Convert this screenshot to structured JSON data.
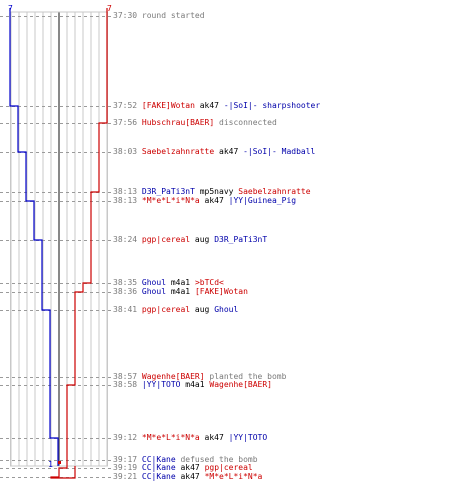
{
  "score": {
    "left_start": "7",
    "right_start": "7",
    "left_end": "1",
    "right_end": "0"
  },
  "colors": {
    "team_a": "#0000cc",
    "team_b": "#cc0000",
    "grid": "#c8c8c8",
    "text_gray": "#7a7a7a"
  },
  "events": [
    {
      "time": "37:30",
      "type": "msg",
      "text": "round started"
    },
    {
      "time": "37:52",
      "type": "kill",
      "killer": "[FAKE]Wotan",
      "killer_team": "red",
      "weapon": "ak47",
      "victim": "-|SoI|- sharpshooter",
      "victim_team": "blue"
    },
    {
      "time": "37:56",
      "type": "msg",
      "player": "Hubschrau[BAER]",
      "player_team": "red",
      "text": "disconnected"
    },
    {
      "time": "38:03",
      "type": "kill",
      "killer": "Saebelzahnratte",
      "killer_team": "red",
      "weapon": "ak47",
      "victim": "-|SoI|- Madball",
      "victim_team": "blue"
    },
    {
      "time": "38:13",
      "type": "kill",
      "killer": "D3R_PaTi3nT",
      "killer_team": "blue",
      "weapon": "mp5navy",
      "victim": "Saebelzahnratte",
      "victim_team": "red"
    },
    {
      "time": "38:13",
      "type": "kill",
      "killer": "*M*e*L*i*N*a",
      "killer_team": "red",
      "weapon": "ak47",
      "victim": "|YY|Guinea_Pig",
      "victim_team": "blue"
    },
    {
      "time": "38:24",
      "type": "kill",
      "killer": "pgp|cereal",
      "killer_team": "red",
      "weapon": "aug",
      "victim": "D3R_PaTi3nT",
      "victim_team": "blue"
    },
    {
      "time": "38:35",
      "type": "kill",
      "killer": "Ghoul",
      "killer_team": "blue",
      "weapon": "m4a1",
      "victim": ">bTCd<",
      "victim_team": "red"
    },
    {
      "time": "38:36",
      "type": "kill",
      "killer": "Ghoul",
      "killer_team": "blue",
      "weapon": "m4a1",
      "victim": "[FAKE]Wotan",
      "victim_team": "red"
    },
    {
      "time": "38:41",
      "type": "kill",
      "killer": "pgp|cereal",
      "killer_team": "red",
      "weapon": "aug",
      "victim": "Ghoul",
      "victim_team": "blue"
    },
    {
      "time": "38:57",
      "type": "msg",
      "player": "Wagenhe[BAER]",
      "player_team": "red",
      "text": "planted the bomb"
    },
    {
      "time": "38:58",
      "type": "kill",
      "killer": "|YY|TOTO",
      "killer_team": "blue",
      "weapon": "m4a1",
      "victim": "Wagenhe[BAER]",
      "victim_team": "red"
    },
    {
      "time": "39:12",
      "type": "kill",
      "killer": "*M*e*L*i*N*a",
      "killer_team": "red",
      "weapon": "ak47",
      "victim": "|YY|TOTO",
      "victim_team": "blue"
    },
    {
      "time": "39:17",
      "type": "msg",
      "player": "CC|Kane",
      "player_team": "blue",
      "text": "defused the bomb"
    },
    {
      "time": "39:19",
      "type": "kill",
      "killer": "CC|Kane",
      "killer_team": "blue",
      "weapon": "ak47",
      "victim": "pgp|cereal",
      "victim_team": "red"
    },
    {
      "time": "39:21",
      "type": "kill",
      "killer": "CC|Kane",
      "killer_team": "blue",
      "weapon": "ak47",
      "victim": "*M*e*L*i*N*a",
      "victim_team": "red"
    }
  ]
}
